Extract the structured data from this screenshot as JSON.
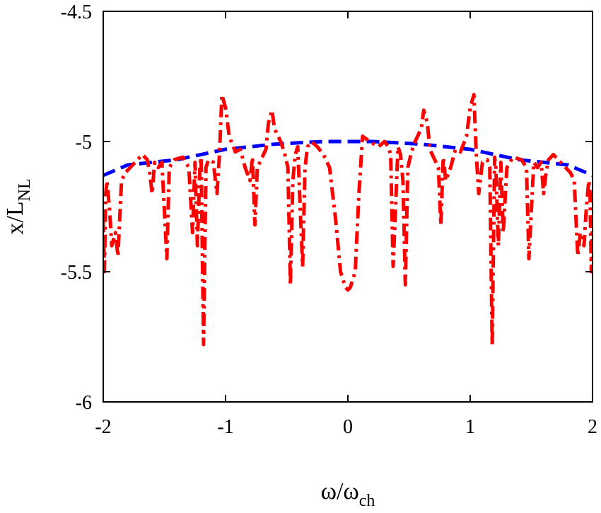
{
  "chart_data": {
    "type": "line",
    "xlabel": {
      "main": "ω/ω",
      "sub": "ch"
    },
    "ylabel": {
      "main": "x/L",
      "sub": "NL"
    },
    "xlim": [
      -2,
      2
    ],
    "ylim": [
      -6,
      -4.5
    ],
    "xticks": [
      -2,
      -1,
      0,
      1,
      2
    ],
    "xtick_labels": [
      "-2",
      "-1",
      "0",
      "1",
      "2"
    ],
    "yticks": [
      -6,
      -5.5,
      -5,
      -4.5
    ],
    "ytick_labels": [
      "-6",
      "-5.5",
      "-5",
      "-4.5"
    ],
    "grid": false,
    "series": [
      {
        "color": "#0000ff",
        "dash": "dashed",
        "points": [
          [
            -2.0,
            -5.13
          ],
          [
            -1.9,
            -5.11
          ],
          [
            -1.8,
            -5.09
          ],
          [
            -1.6,
            -5.08
          ],
          [
            -1.4,
            -5.07
          ],
          [
            -1.2,
            -5.05
          ],
          [
            -1.0,
            -5.03
          ],
          [
            -0.8,
            -5.02
          ],
          [
            -0.6,
            -5.01
          ],
          [
            -0.4,
            -5.005
          ],
          [
            -0.2,
            -5.0
          ],
          [
            0.0,
            -5.0
          ],
          [
            0.2,
            -5.0
          ],
          [
            0.4,
            -5.005
          ],
          [
            0.6,
            -5.01
          ],
          [
            0.8,
            -5.02
          ],
          [
            1.0,
            -5.03
          ],
          [
            1.2,
            -5.05
          ],
          [
            1.4,
            -5.07
          ],
          [
            1.6,
            -5.08
          ],
          [
            1.8,
            -5.09
          ],
          [
            1.9,
            -5.11
          ],
          [
            2.0,
            -5.13
          ]
        ]
      },
      {
        "color": "#ff0000",
        "dash": "dashdot",
        "points": [
          [
            -2.0,
            -5.3
          ],
          [
            -1.99,
            -5.5
          ],
          [
            -1.98,
            -5.2
          ],
          [
            -1.97,
            -5.15
          ],
          [
            -1.95,
            -5.25
          ],
          [
            -1.93,
            -5.4
          ],
          [
            -1.9,
            -5.35
          ],
          [
            -1.88,
            -5.44
          ],
          [
            -1.85,
            -5.15
          ],
          [
            -1.82,
            -5.12
          ],
          [
            -1.78,
            -5.1
          ],
          [
            -1.72,
            -5.07
          ],
          [
            -1.68,
            -5.05
          ],
          [
            -1.64,
            -5.07
          ],
          [
            -1.62,
            -5.12
          ],
          [
            -1.6,
            -5.2
          ],
          [
            -1.58,
            -5.08
          ],
          [
            -1.55,
            -5.1
          ],
          [
            -1.52,
            -5.08
          ],
          [
            -1.48,
            -5.45
          ],
          [
            -1.46,
            -5.1
          ],
          [
            -1.42,
            -5.07
          ],
          [
            -1.35,
            -5.06
          ],
          [
            -1.3,
            -5.1
          ],
          [
            -1.27,
            -5.35
          ],
          [
            -1.25,
            -5.08
          ],
          [
            -1.23,
            -5.4
          ],
          [
            -1.21,
            -5.1
          ],
          [
            -1.2,
            -5.06
          ],
          [
            -1.18,
            -5.78
          ],
          [
            -1.16,
            -5.1
          ],
          [
            -1.14,
            -5.07
          ],
          [
            -1.1,
            -5.08
          ],
          [
            -1.07,
            -5.2
          ],
          [
            -1.05,
            -5.05
          ],
          [
            -1.03,
            -4.82
          ],
          [
            -1.0,
            -4.87
          ],
          [
            -0.97,
            -4.98
          ],
          [
            -0.92,
            -5.04
          ],
          [
            -0.88,
            -5.03
          ],
          [
            -0.84,
            -5.1
          ],
          [
            -0.8,
            -5.15
          ],
          [
            -0.78,
            -5.06
          ],
          [
            -0.76,
            -5.32
          ],
          [
            -0.74,
            -5.1
          ],
          [
            -0.7,
            -5.06
          ],
          [
            -0.67,
            -5.03
          ],
          [
            -0.65,
            -4.93
          ],
          [
            -0.62,
            -4.88
          ],
          [
            -0.6,
            -4.95
          ],
          [
            -0.55,
            -5.0
          ],
          [
            -0.52,
            -5.04
          ],
          [
            -0.49,
            -5.1
          ],
          [
            -0.47,
            -5.55
          ],
          [
            -0.45,
            -5.15
          ],
          [
            -0.43,
            -5.05
          ],
          [
            -0.41,
            -5.02
          ],
          [
            -0.39,
            -5.25
          ],
          [
            -0.37,
            -5.48
          ],
          [
            -0.35,
            -5.1
          ],
          [
            -0.33,
            -5.02
          ],
          [
            -0.3,
            -5.0
          ],
          [
            -0.25,
            -5.02
          ],
          [
            -0.2,
            -5.05
          ],
          [
            -0.15,
            -5.1
          ],
          [
            -0.1,
            -5.3
          ],
          [
            -0.06,
            -5.5
          ],
          [
            -0.02,
            -5.56
          ],
          [
            0.0,
            -5.57
          ],
          [
            0.02,
            -5.56
          ],
          [
            0.06,
            -5.5
          ],
          [
            0.09,
            -5.2
          ],
          [
            0.12,
            -4.98
          ],
          [
            0.18,
            -5.0
          ],
          [
            0.25,
            -5.02
          ],
          [
            0.3,
            -5.0
          ],
          [
            0.33,
            -5.02
          ],
          [
            0.35,
            -5.05
          ],
          [
            0.37,
            -5.48
          ],
          [
            0.39,
            -5.25
          ],
          [
            0.41,
            -5.02
          ],
          [
            0.43,
            -5.05
          ],
          [
            0.45,
            -5.15
          ],
          [
            0.47,
            -5.55
          ],
          [
            0.49,
            -5.1
          ],
          [
            0.52,
            -5.04
          ],
          [
            0.55,
            -5.0
          ],
          [
            0.6,
            -4.95
          ],
          [
            0.62,
            -4.88
          ],
          [
            0.65,
            -4.93
          ],
          [
            0.67,
            -5.03
          ],
          [
            0.7,
            -5.06
          ],
          [
            0.74,
            -5.1
          ],
          [
            0.76,
            -5.32
          ],
          [
            0.78,
            -5.06
          ],
          [
            0.8,
            -5.15
          ],
          [
            0.84,
            -5.1
          ],
          [
            0.88,
            -5.03
          ],
          [
            0.92,
            -5.04
          ],
          [
            0.97,
            -4.98
          ],
          [
            1.0,
            -4.87
          ],
          [
            1.03,
            -4.82
          ],
          [
            1.05,
            -5.05
          ],
          [
            1.07,
            -5.2
          ],
          [
            1.1,
            -5.08
          ],
          [
            1.14,
            -5.07
          ],
          [
            1.16,
            -5.1
          ],
          [
            1.18,
            -5.78
          ],
          [
            1.2,
            -5.06
          ],
          [
            1.21,
            -5.1
          ],
          [
            1.23,
            -5.4
          ],
          [
            1.25,
            -5.08
          ],
          [
            1.27,
            -5.35
          ],
          [
            1.3,
            -5.1
          ],
          [
            1.35,
            -5.06
          ],
          [
            1.42,
            -5.07
          ],
          [
            1.46,
            -5.1
          ],
          [
            1.48,
            -5.45
          ],
          [
            1.52,
            -5.08
          ],
          [
            1.55,
            -5.1
          ],
          [
            1.58,
            -5.08
          ],
          [
            1.6,
            -5.2
          ],
          [
            1.62,
            -5.12
          ],
          [
            1.64,
            -5.07
          ],
          [
            1.68,
            -5.05
          ],
          [
            1.72,
            -5.07
          ],
          [
            1.78,
            -5.1
          ],
          [
            1.82,
            -5.12
          ],
          [
            1.85,
            -5.15
          ],
          [
            1.88,
            -5.44
          ],
          [
            1.9,
            -5.35
          ],
          [
            1.93,
            -5.4
          ],
          [
            1.95,
            -5.25
          ],
          [
            1.97,
            -5.15
          ],
          [
            1.98,
            -5.2
          ],
          [
            1.99,
            -5.5
          ],
          [
            2.0,
            -5.3
          ]
        ]
      }
    ]
  }
}
